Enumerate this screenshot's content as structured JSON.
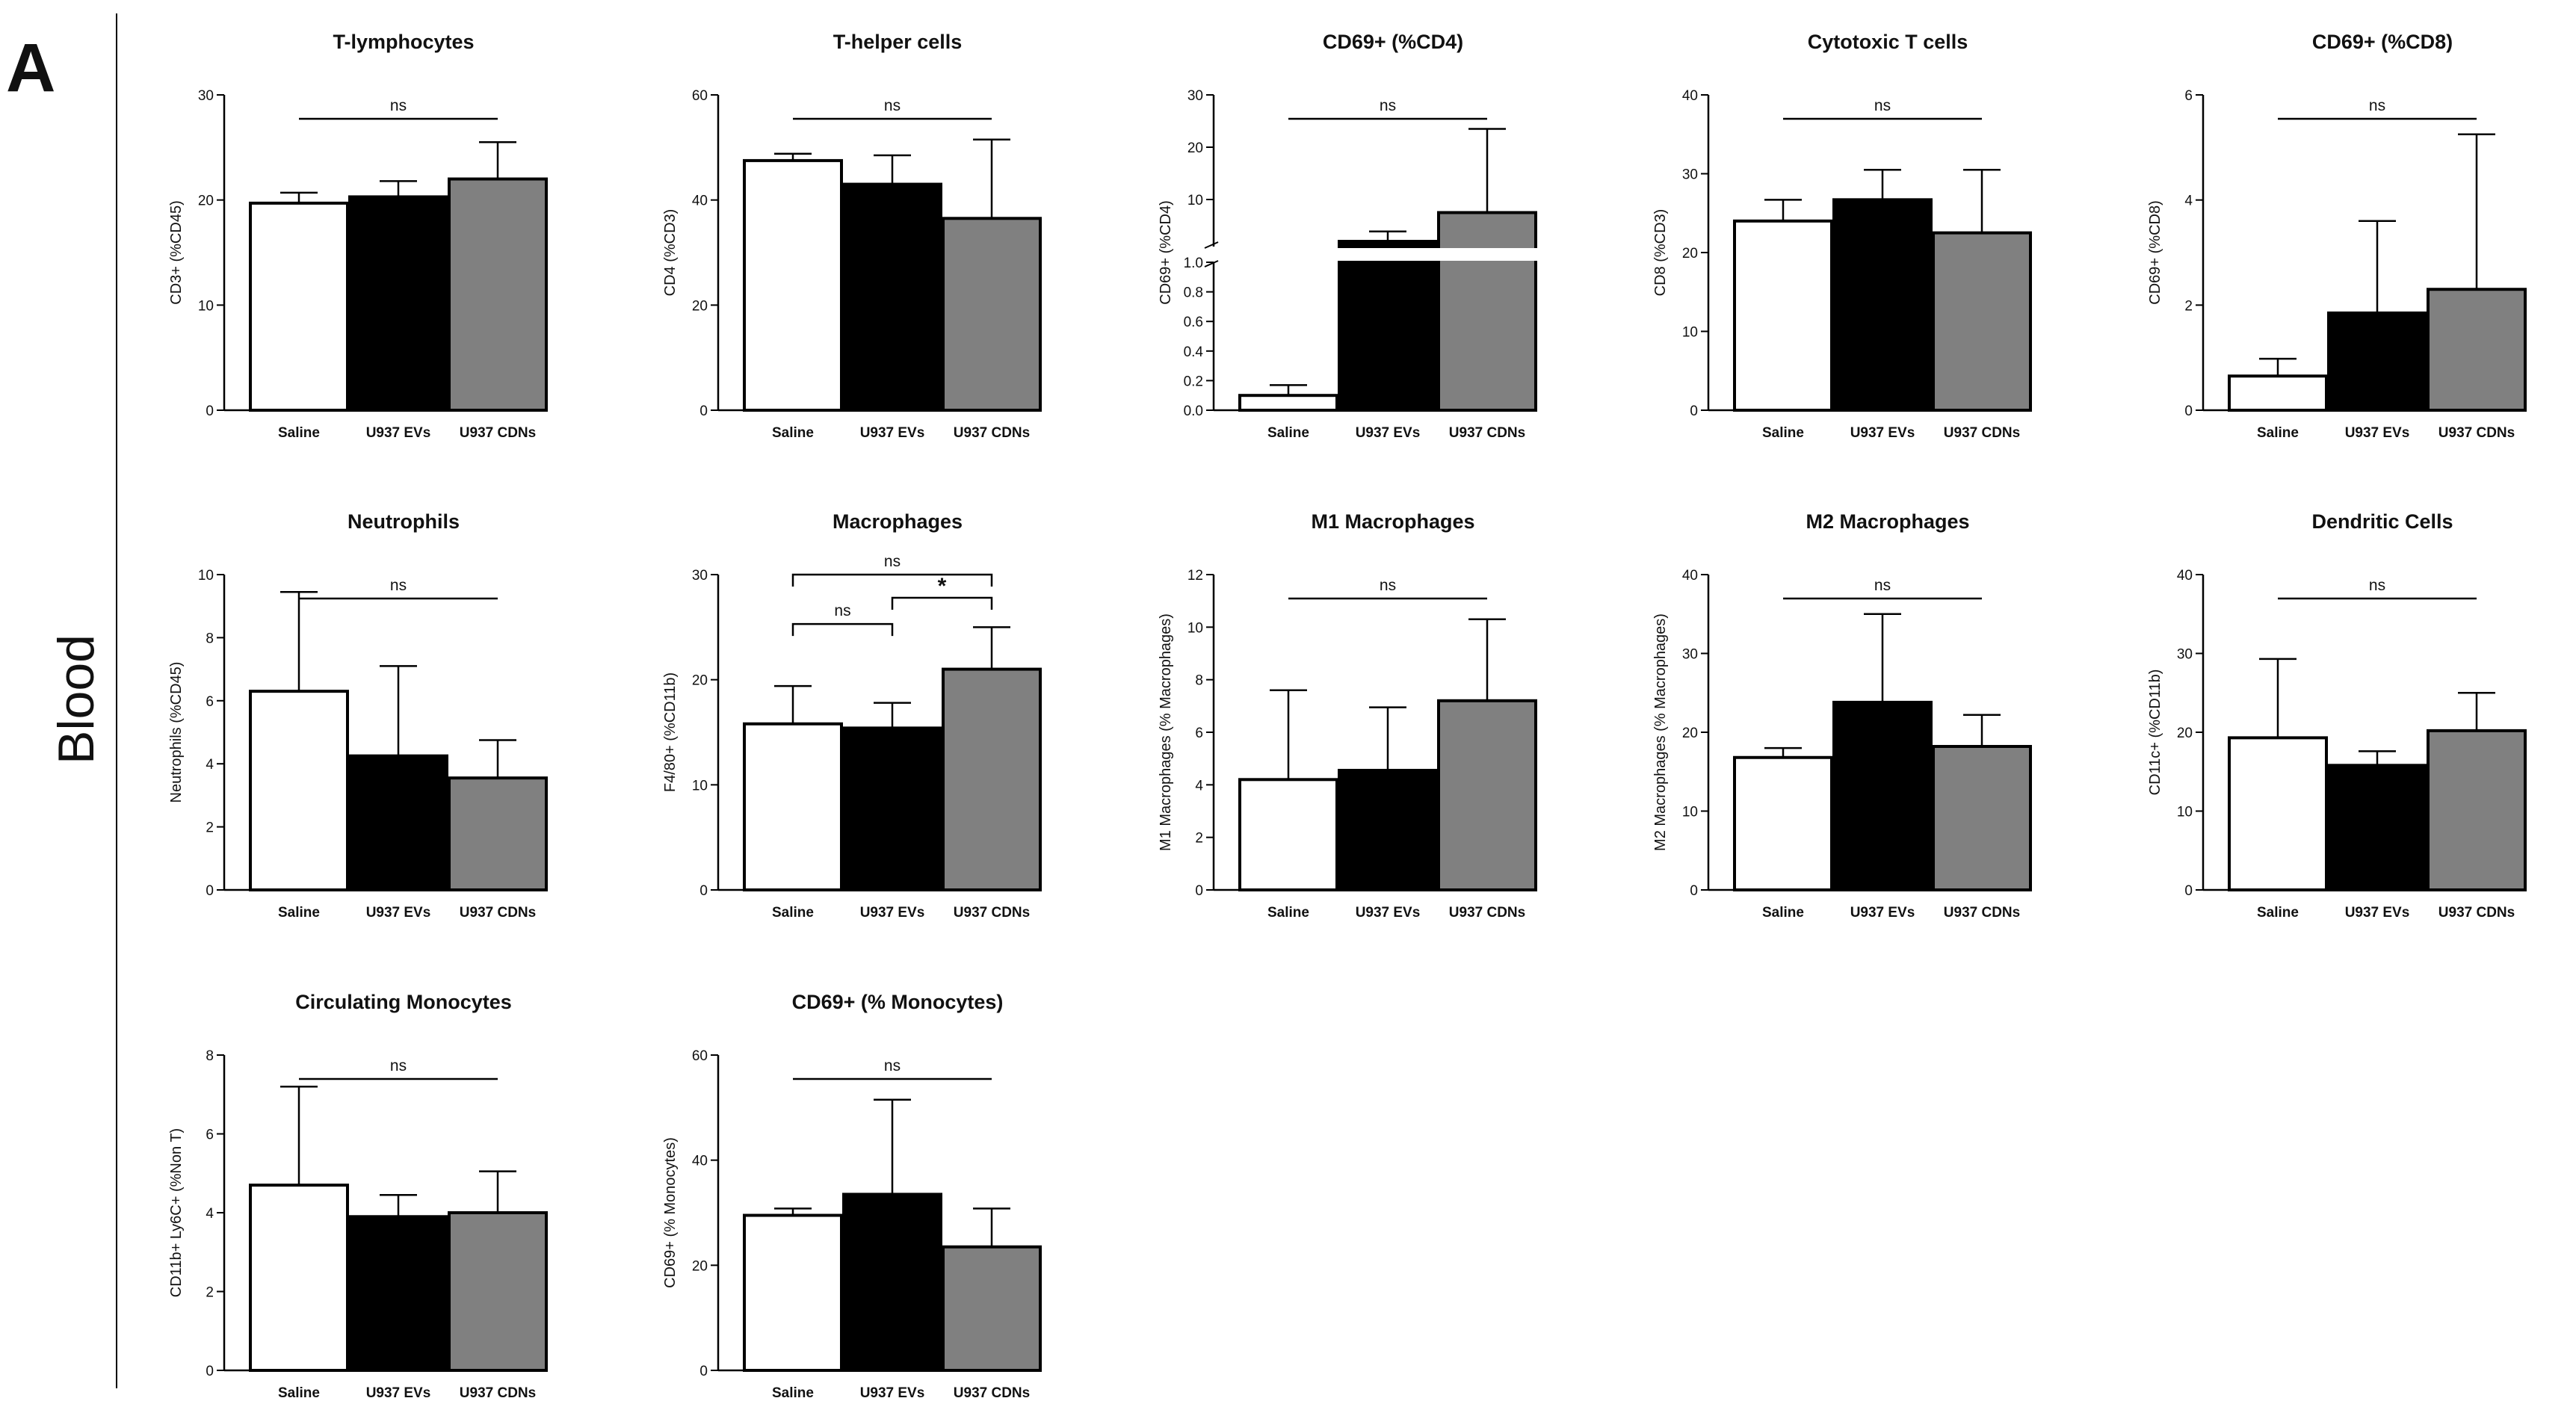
{
  "figure": {
    "panel_label": "A",
    "row_label": "Blood"
  },
  "colors": {
    "Saline": "#ffffff",
    "U937 EVs": "#000000",
    "U937 CDNs": "#808080",
    "axis": "#000000"
  },
  "chart_data": [
    {
      "type": "bar",
      "title": "T-lymphocytes",
      "ylabel": "CD3+ (%CD45)",
      "categories": [
        "Saline",
        "U937 EVs",
        "U937 CDNs"
      ],
      "values": [
        19.7,
        20.3,
        22.0
      ],
      "errors": [
        1.0,
        1.5,
        3.5
      ],
      "ylim": [
        0,
        30
      ],
      "yticks": [
        0,
        10,
        20,
        30
      ],
      "significance": [
        {
          "from": 0,
          "to": 2,
          "label": "ns",
          "style": "line",
          "level": 1
        }
      ]
    },
    {
      "type": "bar",
      "title": "T-helper cells",
      "ylabel": "CD4 (%CD3)",
      "categories": [
        "Saline",
        "U937 EVs",
        "U937 CDNs"
      ],
      "values": [
        47.5,
        43.0,
        36.5
      ],
      "errors": [
        1.3,
        5.5,
        15.0
      ],
      "ylim": [
        0,
        60
      ],
      "yticks": [
        0,
        20,
        40,
        60
      ],
      "significance": [
        {
          "from": 0,
          "to": 2,
          "label": "ns",
          "style": "line",
          "level": 1
        }
      ]
    },
    {
      "type": "bar",
      "title": "CD69+ (%CD4)",
      "ylabel": "CD69+ (%CD4)",
      "categories": [
        "Saline",
        "U937 EVs",
        "U937 CDNs"
      ],
      "values": [
        0.1,
        2.0,
        7.5
      ],
      "errors": [
        0.07,
        1.9,
        16.0
      ],
      "ylim": [
        0,
        30
      ],
      "axis_break": {
        "lower": [
          0,
          1.0
        ],
        "upper": [
          1.0,
          30
        ],
        "lower_ticks": [
          "0.0",
          "0.2",
          "0.4",
          "0.6",
          "0.8",
          "1.0"
        ],
        "upper_ticks": [
          "10",
          "20",
          "30"
        ]
      },
      "significance": [
        {
          "from": 0,
          "to": 2,
          "label": "ns",
          "style": "line",
          "level": 1
        }
      ]
    },
    {
      "type": "bar",
      "title": "Cytotoxic T cells",
      "ylabel": "CD8 (%CD3)",
      "categories": [
        "Saline",
        "U937 EVs",
        "U937 CDNs"
      ],
      "values": [
        24.0,
        26.7,
        22.5
      ],
      "errors": [
        2.7,
        3.8,
        8.0
      ],
      "ylim": [
        0,
        40
      ],
      "yticks": [
        0,
        10,
        20,
        30,
        40
      ],
      "significance": [
        {
          "from": 0,
          "to": 2,
          "label": "ns",
          "style": "line",
          "level": 1
        }
      ]
    },
    {
      "type": "bar",
      "title": "CD69+ (%CD8)",
      "ylabel": "CD69+ (%CD8)",
      "categories": [
        "Saline",
        "U937 EVs",
        "U937 CDNs"
      ],
      "values": [
        0.65,
        1.85,
        2.3
      ],
      "errors": [
        0.33,
        1.75,
        2.95
      ],
      "ylim": [
        0,
        6
      ],
      "yticks": [
        0,
        2,
        4,
        6
      ],
      "significance": [
        {
          "from": 0,
          "to": 2,
          "label": "ns",
          "style": "line",
          "level": 1
        }
      ]
    },
    {
      "type": "bar",
      "title": "Neutrophils",
      "ylabel": "Neutrophils (%CD45)",
      "categories": [
        "Saline",
        "U937 EVs",
        "U937 CDNs"
      ],
      "values": [
        6.3,
        4.25,
        3.55
      ],
      "errors": [
        3.15,
        2.85,
        1.2
      ],
      "ylim": [
        0,
        10
      ],
      "yticks": [
        0,
        2,
        4,
        6,
        8,
        10
      ],
      "significance": [
        {
          "from": 0,
          "to": 2,
          "label": "ns",
          "style": "line",
          "level": 1
        }
      ]
    },
    {
      "type": "bar",
      "title": "Macrophages",
      "ylabel": "F4/80+ (%CD11b)",
      "categories": [
        "Saline",
        "U937 EVs",
        "U937 CDNs"
      ],
      "values": [
        15.8,
        15.4,
        21.0
      ],
      "errors": [
        3.6,
        2.4,
        4.0
      ],
      "ylim": [
        0,
        30
      ],
      "yticks": [
        0,
        10,
        20,
        30
      ],
      "significance": [
        {
          "from": 0,
          "to": 1,
          "label": "ns",
          "style": "bracket",
          "level": 0
        },
        {
          "from": 1,
          "to": 2,
          "label": "*",
          "style": "bracket",
          "level": 1
        },
        {
          "from": 0,
          "to": 2,
          "label": "ns",
          "style": "bracket",
          "level": 2
        }
      ]
    },
    {
      "type": "bar",
      "title": "M1 Macrophages",
      "ylabel": "M1 Macrophages (% Macrophages)",
      "categories": [
        "Saline",
        "U937 EVs",
        "U937 CDNs"
      ],
      "values": [
        4.2,
        4.55,
        7.2
      ],
      "errors": [
        3.4,
        2.4,
        3.1
      ],
      "ylim": [
        0,
        12
      ],
      "yticks": [
        0,
        2,
        4,
        6,
        8,
        10,
        12
      ],
      "significance": [
        {
          "from": 0,
          "to": 2,
          "label": "ns",
          "style": "line",
          "level": 1
        }
      ]
    },
    {
      "type": "bar",
      "title": "M2 Macrophages",
      "ylabel": "M2 Macrophages (% Macrophages)",
      "categories": [
        "Saline",
        "U937 EVs",
        "U937 CDNs"
      ],
      "values": [
        16.8,
        23.8,
        18.2
      ],
      "errors": [
        1.2,
        11.2,
        4.0
      ],
      "ylim": [
        0,
        40
      ],
      "yticks": [
        0,
        10,
        20,
        30,
        40
      ],
      "significance": [
        {
          "from": 0,
          "to": 2,
          "label": "ns",
          "style": "line",
          "level": 1
        }
      ]
    },
    {
      "type": "bar",
      "title": "Dendritic Cells",
      "ylabel": "CD11c+ (%CD11b)",
      "categories": [
        "Saline",
        "U937 EVs",
        "U937 CDNs"
      ],
      "values": [
        19.3,
        15.8,
        20.2
      ],
      "errors": [
        10.0,
        1.8,
        4.8
      ],
      "ylim": [
        0,
        40
      ],
      "yticks": [
        0,
        10,
        20,
        30,
        40
      ],
      "significance": [
        {
          "from": 0,
          "to": 2,
          "label": "ns",
          "style": "line",
          "level": 1
        }
      ]
    },
    {
      "type": "bar",
      "title": "Circulating Monocytes",
      "ylabel": "CD11b+ Ly6C+ (%Non T)",
      "categories": [
        "Saline",
        "U937 EVs",
        "U937 CDNs"
      ],
      "values": [
        4.7,
        3.9,
        4.0
      ],
      "errors": [
        2.5,
        0.55,
        1.05
      ],
      "ylim": [
        0,
        8
      ],
      "yticks": [
        0,
        2,
        4,
        6,
        8
      ],
      "significance": [
        {
          "from": 0,
          "to": 2,
          "label": "ns",
          "style": "line",
          "level": 1
        }
      ]
    },
    {
      "type": "bar",
      "title": "CD69+ (% Monocytes)",
      "ylabel": "CD69+ (% Monocytes)",
      "categories": [
        "Saline",
        "U937 EVs",
        "U937 CDNs"
      ],
      "values": [
        29.5,
        33.5,
        23.5
      ],
      "errors": [
        1.3,
        18.0,
        7.3
      ],
      "ylim": [
        0,
        60
      ],
      "yticks": [
        0,
        20,
        40,
        60
      ],
      "significance": [
        {
          "from": 0,
          "to": 2,
          "label": "ns",
          "style": "line",
          "level": 1
        }
      ]
    }
  ]
}
